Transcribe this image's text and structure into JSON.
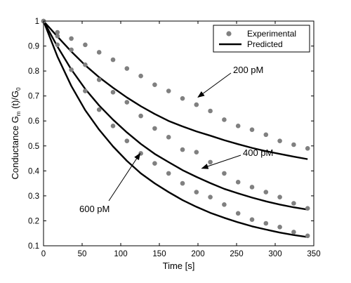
{
  "chart_data": {
    "type": "scatter",
    "xlabel": "Time [s]",
    "ylabel_parts": [
      "Conductance G",
      "m",
      " (t)/G",
      "0"
    ],
    "xlim": [
      0,
      350
    ],
    "ylim": [
      0.1,
      1
    ],
    "x_ticks": [
      0,
      50,
      100,
      150,
      200,
      250,
      300,
      350
    ],
    "y_ticks": [
      0.1,
      0.2,
      0.3,
      0.4,
      0.5,
      0.6,
      0.7,
      0.8,
      0.9,
      1
    ],
    "grid": false,
    "legend": {
      "position": "top-right",
      "entries": [
        "Experimental",
        "Predicted"
      ]
    },
    "x": [
      0,
      18,
      36,
      54,
      72,
      90,
      108,
      126,
      144,
      162,
      180,
      198,
      216,
      234,
      252,
      270,
      288,
      306,
      324,
      342
    ],
    "series": [
      {
        "name": "Experimental",
        "label": "200 pM",
        "kind": "points",
        "values": [
          1.0,
          0.955,
          0.93,
          0.905,
          0.875,
          0.845,
          0.81,
          0.78,
          0.745,
          0.72,
          0.69,
          0.665,
          0.64,
          0.605,
          0.58,
          0.565,
          0.545,
          0.52,
          0.505,
          0.49
        ]
      },
      {
        "name": "Experimental",
        "label": "400 pM",
        "kind": "points",
        "values": [
          1.0,
          0.94,
          0.885,
          0.825,
          0.765,
          0.715,
          0.675,
          0.62,
          0.57,
          0.535,
          0.485,
          0.475,
          0.435,
          0.39,
          0.355,
          0.335,
          0.315,
          0.295,
          0.27,
          0.25
        ]
      },
      {
        "name": "Experimental",
        "label": "600 pM",
        "kind": "points",
        "values": [
          1.0,
          0.905,
          0.805,
          0.72,
          0.645,
          0.58,
          0.52,
          0.47,
          0.43,
          0.39,
          0.35,
          0.315,
          0.295,
          0.265,
          0.23,
          0.205,
          0.19,
          0.175,
          0.155,
          0.14
        ]
      },
      {
        "name": "Predicted",
        "label": "200 pM",
        "kind": "line",
        "values": [
          1.0,
          0.938,
          0.878,
          0.823,
          0.775,
          0.733,
          0.694,
          0.659,
          0.628,
          0.6,
          0.578,
          0.558,
          0.541,
          0.523,
          0.507,
          0.492,
          0.479,
          0.468,
          0.457,
          0.447
        ]
      },
      {
        "name": "Predicted",
        "label": "400 pM",
        "kind": "line",
        "values": [
          1.0,
          0.898,
          0.806,
          0.728,
          0.662,
          0.605,
          0.554,
          0.508,
          0.468,
          0.435,
          0.403,
          0.376,
          0.351,
          0.328,
          0.31,
          0.293,
          0.278,
          0.265,
          0.254,
          0.245
        ]
      },
      {
        "name": "Predicted",
        "label": "600 pM",
        "kind": "line",
        "values": [
          1.0,
          0.858,
          0.74,
          0.643,
          0.565,
          0.498,
          0.44,
          0.39,
          0.35,
          0.315,
          0.283,
          0.256,
          0.232,
          0.212,
          0.194,
          0.178,
          0.165,
          0.153,
          0.143,
          0.135
        ]
      }
    ],
    "annotations": [
      {
        "text": "200 pM",
        "arrow_to": [
          200,
          0.695
        ]
      },
      {
        "text": "400 pM",
        "arrow_to": [
          205,
          0.41
        ]
      },
      {
        "text": "600 pM",
        "arrow_to": [
          125,
          0.47
        ]
      }
    ],
    "colors": {
      "experimental": "#808080",
      "predicted": "#000000",
      "axes": "#000000"
    }
  }
}
